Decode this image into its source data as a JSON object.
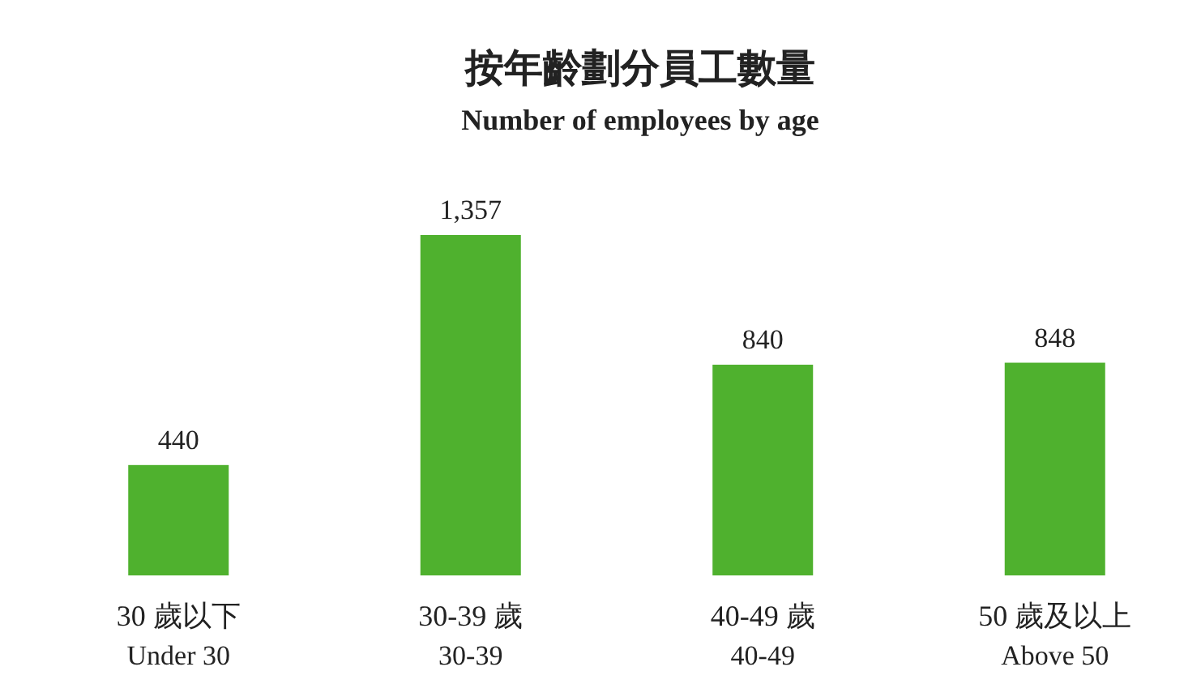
{
  "chart_data": {
    "type": "bar",
    "title": "按年齡劃分員工數量",
    "subtitle": "Number of employees by age",
    "categories": [
      "30 歲以下\nUnder 30",
      "30-39 歲\n30-39",
      "40-49 歲\n40-49",
      "50 歲及以上\nAbove 50"
    ],
    "values": [
      440,
      1357,
      840,
      848
    ],
    "value_labels": [
      "440",
      "1,357",
      "840",
      "848"
    ],
    "color": "#4fb12e"
  }
}
